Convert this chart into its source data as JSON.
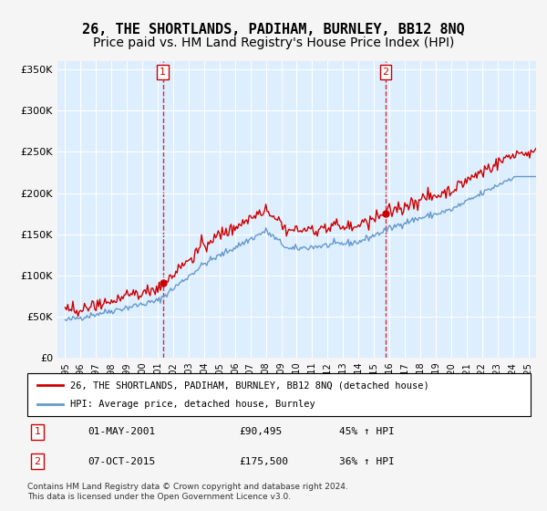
{
  "title": "26, THE SHORTLANDS, PADIHAM, BURNLEY, BB12 8NQ",
  "subtitle": "Price paid vs. HM Land Registry's House Price Index (HPI)",
  "ylabel_ticks": [
    0,
    50000,
    100000,
    150000,
    200000,
    250000,
    300000,
    350000
  ],
  "ylabel_labels": [
    "£0",
    "£50K",
    "£100K",
    "£150K",
    "£200K",
    "£250K",
    "£300K",
    "£350K"
  ],
  "xlim": [
    1994.5,
    2025.5
  ],
  "ylim": [
    0,
    360000
  ],
  "sale1_x": 2001.33,
  "sale1_y": 90495,
  "sale2_x": 2015.75,
  "sale2_y": 175500,
  "legend_line1": "26, THE SHORTLANDS, PADIHAM, BURNLEY, BB12 8NQ (detached house)",
  "legend_line2": "HPI: Average price, detached house, Burnley",
  "table_row1_num": "1",
  "table_row1_date": "01-MAY-2001",
  "table_row1_price": "£90,495",
  "table_row1_hpi": "45% ↑ HPI",
  "table_row2_num": "2",
  "table_row2_date": "07-OCT-2015",
  "table_row2_price": "£175,500",
  "table_row2_hpi": "36% ↑ HPI",
  "footnote": "Contains HM Land Registry data © Crown copyright and database right 2024.\nThis data is licensed under the Open Government Licence v3.0.",
  "red_color": "#cc0000",
  "blue_color": "#6699cc",
  "bg_color": "#ddeeff",
  "grid_color": "#ffffff",
  "title_fontsize": 11,
  "subtitle_fontsize": 10
}
